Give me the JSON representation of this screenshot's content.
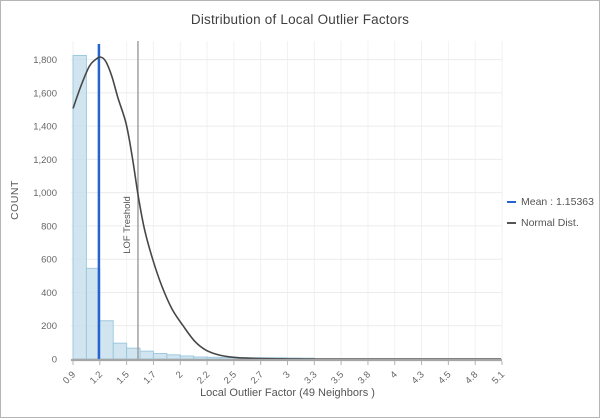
{
  "chart": {
    "title": "Distribution of Local Outlier Factors",
    "x_axis_title": "Local Outlier Factor (49 Neighbors )",
    "y_axis_title": "COUNT"
  },
  "legend": {
    "position": "right",
    "items": [
      {
        "label": "Mean : 1.15363",
        "color": "#2663cf"
      },
      {
        "label": "Normal Dist.",
        "color": "#555555"
      }
    ]
  },
  "colors": {
    "bar_fill": "#c9e0ee",
    "bar_stroke": "#9fc9de",
    "mean_line": "#2663cf",
    "threshold_line": "#9b9b9b",
    "curve": "#474747",
    "axis_line": "#a6a6a6",
    "gridline": "#ececec",
    "vertical_gridline": "#f2f2f2",
    "tick_text": "#666666"
  },
  "chart_data": {
    "type": "bar",
    "subtype": "histogram with normal distribution overlay",
    "title": "Distribution of Local Outlier Factors",
    "xlabel": "Local Outlier Factor (49 Neighbors )",
    "ylabel": "COUNT",
    "xlim": [
      0.9,
      5.1
    ],
    "ylim": [
      0,
      1800
    ],
    "grid": true,
    "legend_position": "right",
    "x_tick_labels": [
      "0.9",
      "1.2",
      "1.5",
      "1.7",
      "2",
      "2.2",
      "2.5",
      "2.7",
      "3",
      "3.3",
      "3.5",
      "3.8",
      "4",
      "4.3",
      "4.5",
      "4.8",
      "5.1"
    ],
    "x_tick_values": [
      0.9,
      1.1625,
      1.425,
      1.6875,
      1.95,
      2.2125,
      2.475,
      2.7375,
      3.0,
      3.2625,
      3.525,
      3.7875,
      4.05,
      4.3125,
      4.575,
      4.8375,
      5.1
    ],
    "y_tick_labels": [
      "0",
      "200",
      "400",
      "600",
      "800",
      "1,000",
      "1,200",
      "1,400",
      "1,600",
      "1,800"
    ],
    "y_tick_values": [
      0,
      200,
      400,
      600,
      800,
      1000,
      1200,
      1400,
      1600,
      1800
    ],
    "histogram": {
      "bin_width": 0.13125,
      "bin_starts": [
        0.9,
        1.03125,
        1.1625,
        1.29375,
        1.425,
        1.55625,
        1.6875,
        1.81875,
        1.95,
        2.08125,
        2.2125,
        2.34375,
        2.475,
        2.60625,
        2.7375,
        2.86875,
        3.0,
        3.13125
      ],
      "counts": [
        1825,
        545,
        230,
        95,
        65,
        47,
        33,
        25,
        18,
        12,
        10,
        9,
        8,
        8,
        8,
        7,
        6,
        5
      ]
    },
    "mean_line": {
      "value": 1.15363,
      "label": "Mean : 1.15363"
    },
    "threshold_line": {
      "value": 1.536,
      "label": "LOF Treshold"
    },
    "normal_curve": {
      "name": "Normal Dist.",
      "points": [
        [
          0.9,
          1506
        ],
        [
          0.98,
          1645
        ],
        [
          1.06,
          1760
        ],
        [
          1.12,
          1800
        ],
        [
          1.17,
          1815
        ],
        [
          1.22,
          1790
        ],
        [
          1.28,
          1700
        ],
        [
          1.34,
          1570
        ],
        [
          1.42,
          1415
        ],
        [
          1.48,
          1215
        ],
        [
          1.54,
          975
        ],
        [
          1.6,
          780
        ],
        [
          1.68,
          600
        ],
        [
          1.77,
          438
        ],
        [
          1.87,
          300
        ],
        [
          1.98,
          198
        ],
        [
          2.09,
          108
        ],
        [
          2.2,
          54
        ],
        [
          2.33,
          24
        ],
        [
          2.47,
          10
        ],
        [
          2.64,
          4
        ],
        [
          2.94,
          1
        ],
        [
          3.3,
          0
        ],
        [
          4.0,
          0
        ],
        [
          5.09,
          0
        ]
      ]
    }
  }
}
